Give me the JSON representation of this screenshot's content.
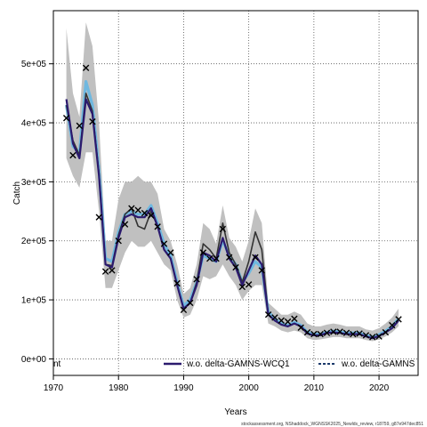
{
  "chart_data": {
    "type": "line",
    "xlabel": "Years",
    "ylabel": "Catch",
    "xlim": [
      1970,
      2026
    ],
    "ylim": [
      -28000,
      590000
    ],
    "x_ticks": [
      1970,
      1980,
      1990,
      2000,
      2010,
      2020
    ],
    "x_tick_labels": [
      "1970",
      "1980",
      "1990",
      "2000",
      "2010",
      "2020"
    ],
    "y_ticks": [
      0,
      100000,
      200000,
      300000,
      400000,
      500000
    ],
    "y_tick_labels": [
      "0e+00",
      "1e+05",
      "2e+05",
      "3e+05",
      "4e+05",
      "5e+05"
    ],
    "grid": true,
    "legend_placement": "bottom",
    "legend": [
      {
        "label": "nt",
        "style": "none"
      },
      {
        "label": "w.o. delta-GAMNS-WCQ1",
        "style": "solid",
        "color": "#2b1a6e"
      },
      {
        "label": "w.o. delta-GAMNS",
        "style": "dashed",
        "color": "#1c3a6b"
      }
    ],
    "footer": "stockassessment.org, NShaddock_WGNSSK2025_Newlds_review, r18759, g87e947dec851",
    "colors": {
      "band": "#c0c0c0",
      "band_inner": "#a8d4ec",
      "main_line": "#2b1a6e",
      "light_line": "#6fb8e0",
      "dark_line": "#333333",
      "observations": "#000000"
    },
    "x": [
      1972,
      1973,
      1974,
      1975,
      1976,
      1977,
      1978,
      1979,
      1980,
      1981,
      1982,
      1983,
      1984,
      1985,
      1986,
      1987,
      1988,
      1989,
      1990,
      1991,
      1992,
      1993,
      1994,
      1995,
      1996,
      1997,
      1998,
      1999,
      2000,
      2001,
      2002,
      2003,
      2004,
      2005,
      2006,
      2007,
      2008,
      2009,
      2010,
      2011,
      2012,
      2013,
      2014,
      2015,
      2016,
      2017,
      2018,
      2019,
      2020,
      2021,
      2022,
      2023
    ],
    "band_upper": [
      560000,
      450000,
      410000,
      570000,
      530000,
      400000,
      200000,
      200000,
      270000,
      300000,
      300000,
      310000,
      300000,
      300000,
      280000,
      220000,
      200000,
      160000,
      110000,
      120000,
      160000,
      230000,
      220000,
      195000,
      260000,
      205000,
      190000,
      165000,
      200000,
      255000,
      230000,
      95000,
      85000,
      75000,
      75000,
      80000,
      75000,
      60000,
      55000,
      55000,
      58000,
      60000,
      58000,
      55000,
      55000,
      55000,
      50000,
      48000,
      52000,
      60000,
      70000,
      85000
    ],
    "band_lower": [
      340000,
      310000,
      290000,
      350000,
      350000,
      250000,
      120000,
      120000,
      150000,
      180000,
      200000,
      190000,
      190000,
      200000,
      180000,
      160000,
      150000,
      100000,
      70000,
      75000,
      100000,
      140000,
      135000,
      140000,
      160000,
      140000,
      125000,
      100000,
      115000,
      125000,
      125000,
      60000,
      55000,
      48000,
      45000,
      48000,
      45000,
      35000,
      32000,
      33000,
      35000,
      37000,
      37000,
      35000,
      35000,
      35000,
      32000,
      30000,
      33000,
      38000,
      45000,
      55000
    ],
    "series": [
      {
        "name": "w.o. delta-GAMNS-WCQ1",
        "color": "#2b1a6e",
        "style": "solid",
        "values": [
          440000,
          365000,
          340000,
          440000,
          415000,
          310000,
          160000,
          155000,
          205000,
          240000,
          245000,
          240000,
          240000,
          255000,
          225000,
          185000,
          170000,
          125000,
          85000,
          95000,
          125000,
          180000,
          175000,
          165000,
          205000,
          170000,
          155000,
          125000,
          150000,
          175000,
          160000,
          75000,
          65000,
          58000,
          55000,
          60000,
          55000,
          43000,
          40000,
          40000,
          44000,
          45000,
          44000,
          42000,
          42000,
          42000,
          38000,
          35000,
          39000,
          45000,
          52000,
          65000
        ]
      },
      {
        "name": "",
        "color": "#6fb8e0",
        "style": "solid",
        "values": [
          430000,
          360000,
          350000,
          470000,
          430000,
          320000,
          170000,
          165000,
          215000,
          245000,
          250000,
          245000,
          245000,
          260000,
          230000,
          195000,
          175000,
          130000,
          90000,
          100000,
          130000,
          175000,
          170000,
          165000,
          200000,
          175000,
          160000,
          130000,
          145000,
          165000,
          155000,
          80000,
          68000,
          60000,
          57000,
          62000,
          57000,
          45000,
          42000,
          42000,
          45000,
          47000,
          46000,
          44000,
          44000,
          44000,
          40000,
          37000,
          41000,
          47000,
          55000,
          68000
        ]
      },
      {
        "name": "",
        "color": "#333333",
        "style": "solid",
        "values": [
          430000,
          370000,
          345000,
          450000,
          420000,
          315000,
          160000,
          158000,
          210000,
          245000,
          255000,
          225000,
          220000,
          250000,
          225000,
          185000,
          170000,
          125000,
          85000,
          95000,
          130000,
          195000,
          185000,
          170000,
          230000,
          180000,
          160000,
          130000,
          165000,
          215000,
          185000,
          75000,
          65000,
          58000,
          55000,
          60000,
          55000,
          43000,
          40000,
          40000,
          44000,
          45000,
          44000,
          42000,
          42000,
          42000,
          38000,
          35000,
          39000,
          45000,
          52000,
          65000
        ]
      }
    ],
    "observations": {
      "x": [
        1972,
        1973,
        1974,
        1975,
        1976,
        1977,
        1978,
        1979,
        1980,
        1981,
        1982,
        1983,
        1984,
        1985,
        1986,
        1987,
        1988,
        1989,
        1990,
        1991,
        1992,
        1993,
        1994,
        1995,
        1996,
        1997,
        1998,
        1999,
        2000,
        2001,
        2002,
        2003,
        2004,
        2005,
        2006,
        2007,
        2008,
        2009,
        2010,
        2011,
        2012,
        2013,
        2014,
        2015,
        2016,
        2017,
        2018,
        2019,
        2020,
        2021,
        2022,
        2023
      ],
      "y": [
        408000,
        345000,
        395000,
        493000,
        402000,
        240000,
        148000,
        150000,
        200000,
        228000,
        255000,
        252000,
        247000,
        243000,
        224000,
        195000,
        180000,
        128000,
        83000,
        95000,
        135000,
        180000,
        170000,
        170000,
        220000,
        172000,
        155000,
        122000,
        126000,
        172000,
        150000,
        75000,
        70000,
        65000,
        63000,
        68000,
        53000,
        45000,
        42000,
        42000,
        44000,
        46000,
        46000,
        44000,
        42000,
        43000,
        40000,
        37000,
        38000,
        45000,
        57000,
        67000
      ]
    }
  }
}
